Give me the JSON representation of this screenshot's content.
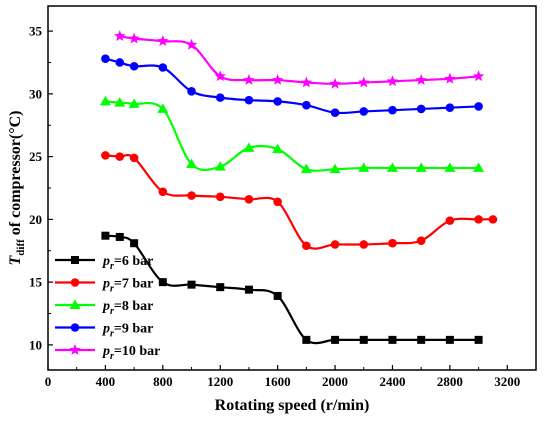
{
  "chart_data": {
    "type": "line",
    "title": "",
    "xlabel": "Rotating speed (r/min)",
    "ylabel": {
      "main": "T",
      "sub": "diff",
      "rest": " of compressor(°C)"
    },
    "xlim": [
      0,
      3400
    ],
    "ylim": [
      8,
      37
    ],
    "xticks": [
      0,
      400,
      800,
      1200,
      1600,
      2000,
      2400,
      2800,
      3200
    ],
    "yticks": [
      10,
      15,
      20,
      25,
      30,
      35
    ],
    "grid": false,
    "legend_position": "bottom-left",
    "series": [
      {
        "legend_prefix": "p",
        "legend_sub": "r",
        "legend_rest": "=6 bar",
        "color": "#000000",
        "marker": "square",
        "x": [
          400,
          500,
          600,
          800,
          1000,
          1200,
          1400,
          1600,
          1800,
          2000,
          2200,
          2400,
          2600,
          2800,
          3000
        ],
        "y": [
          18.7,
          18.6,
          18.1,
          15.0,
          14.8,
          14.6,
          14.4,
          13.9,
          10.4,
          10.4,
          10.4,
          10.4,
          10.4,
          10.4,
          10.4
        ]
      },
      {
        "legend_prefix": "p",
        "legend_sub": "r",
        "legend_rest": "=7 bar",
        "color": "#ff0000",
        "marker": "circle",
        "x": [
          400,
          500,
          600,
          800,
          1000,
          1200,
          1400,
          1600,
          1800,
          2000,
          2200,
          2400,
          2600,
          2800,
          3000,
          3100
        ],
        "y": [
          25.1,
          25.0,
          24.9,
          22.2,
          21.9,
          21.8,
          21.6,
          21.4,
          17.9,
          18.0,
          18.0,
          18.1,
          18.3,
          19.9,
          20.0,
          20.0
        ]
      },
      {
        "legend_prefix": "p",
        "legend_sub": "r",
        "legend_rest": "=8 bar",
        "color": "#00ff00",
        "marker": "triangle",
        "x": [
          400,
          500,
          600,
          800,
          1000,
          1200,
          1400,
          1600,
          1800,
          2000,
          2200,
          2400,
          2600,
          2800,
          3000
        ],
        "y": [
          29.4,
          29.3,
          29.2,
          28.8,
          24.4,
          24.2,
          25.7,
          25.6,
          24.0,
          24.0,
          24.1,
          24.1,
          24.1,
          24.1,
          24.1
        ]
      },
      {
        "legend_prefix": "p",
        "legend_sub": "r",
        "legend_rest": "=9 bar",
        "color": "#0000ff",
        "marker": "circle",
        "x": [
          400,
          500,
          600,
          800,
          1000,
          1200,
          1400,
          1600,
          1800,
          2000,
          2200,
          2400,
          2600,
          2800,
          3000
        ],
        "y": [
          32.8,
          32.5,
          32.2,
          32.1,
          30.2,
          29.7,
          29.5,
          29.4,
          29.1,
          28.5,
          28.6,
          28.7,
          28.8,
          28.9,
          29.0
        ]
      },
      {
        "legend_prefix": "p",
        "legend_sub": "r",
        "legend_rest": "=10 bar",
        "color": "#ff00ff",
        "marker": "star",
        "x": [
          500,
          600,
          800,
          1000,
          1200,
          1400,
          1600,
          1800,
          2000,
          2200,
          2400,
          2600,
          2800,
          3000
        ],
        "y": [
          34.6,
          34.4,
          34.2,
          33.9,
          31.4,
          31.1,
          31.1,
          30.9,
          30.8,
          30.9,
          31.0,
          31.1,
          31.2,
          31.4
        ]
      }
    ]
  }
}
